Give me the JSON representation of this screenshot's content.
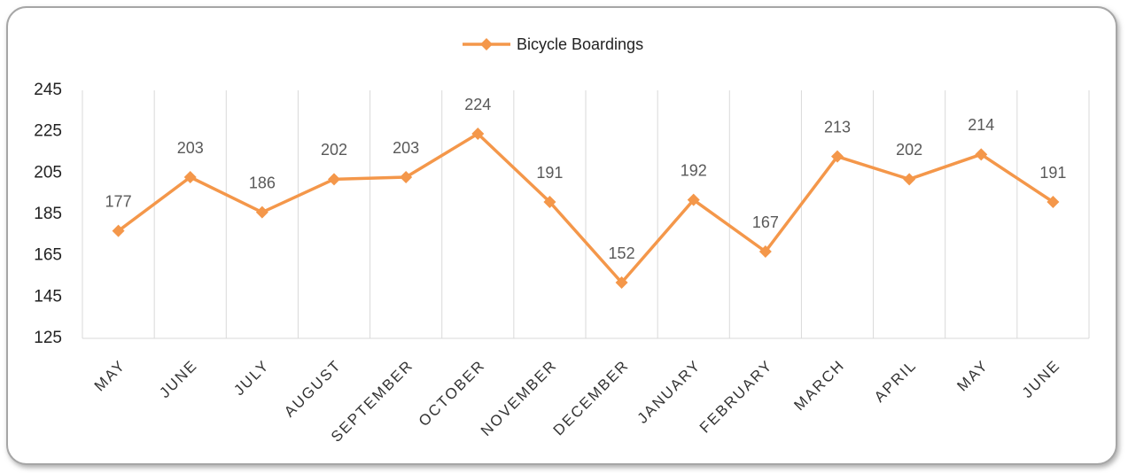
{
  "chart_data": {
    "type": "line",
    "categories": [
      "MAY",
      "JUNE",
      "JULY",
      "AUGUST",
      "SEPTEMBER",
      "OCTOBER",
      "NOVEMBER",
      "DECEMBER",
      "JANUARY",
      "FEBRUARY",
      "MARCH",
      "APRIL",
      "MAY",
      "JUNE"
    ],
    "series": [
      {
        "name": "Bicycle Boardings",
        "color": "#f4974a",
        "values": [
          177,
          203,
          186,
          202,
          203,
          224,
          191,
          152,
          192,
          167,
          213,
          202,
          214,
          191
        ]
      }
    ],
    "ylim": [
      125,
      245
    ],
    "yticks": [
      125,
      145,
      165,
      185,
      205,
      225,
      245
    ],
    "legend": "top",
    "data_labels": true
  }
}
